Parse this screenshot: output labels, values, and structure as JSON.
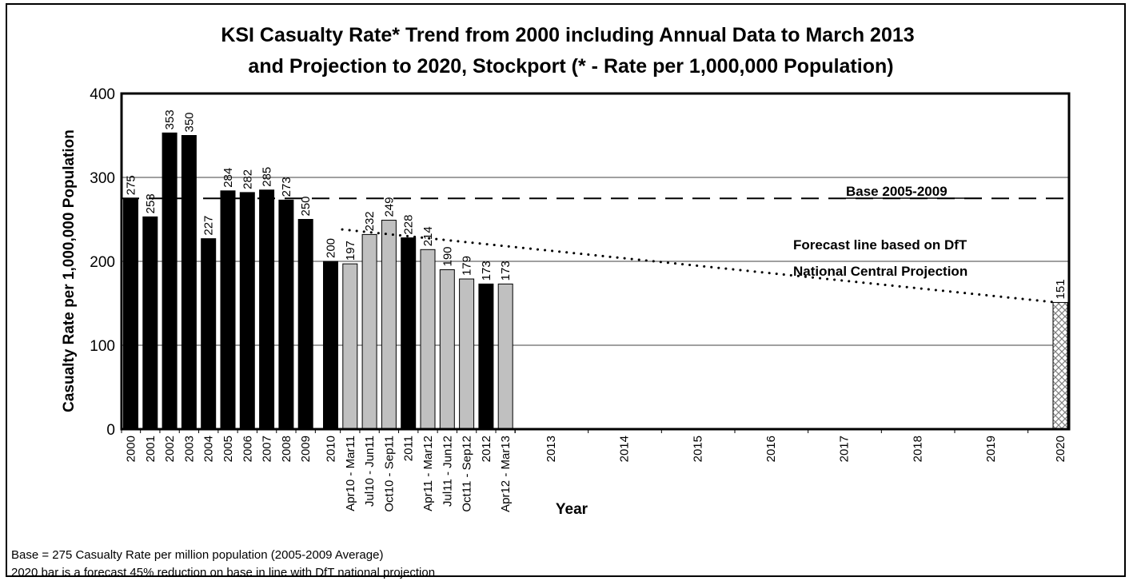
{
  "chart_data": {
    "type": "bar",
    "title_lines": [
      "KSI Casualty Rate* Trend from 2000 including Annual Data to March 2013",
      "and Projection to 2020, Stockport (* - Rate per 1,000,000 Population)"
    ],
    "xlabel": "Year",
    "ylabel": "Casualty Rate per 1,000,000 Population",
    "ylim": [
      0,
      400
    ],
    "yticks": [
      "0",
      "100",
      "200",
      "300",
      "400"
    ],
    "grid": "horizontal",
    "colors": {
      "annual": "#000000",
      "rolling": "#c0c0c0",
      "forecast_hatch": "#808080"
    },
    "bars": [
      {
        "label": "2000",
        "value": 275,
        "kind": "annual"
      },
      {
        "label": "2001",
        "value": 253,
        "kind": "annual"
      },
      {
        "label": "2002",
        "value": 353,
        "kind": "annual"
      },
      {
        "label": "2003",
        "value": 350,
        "kind": "annual"
      },
      {
        "label": "2004",
        "value": 227,
        "kind": "annual"
      },
      {
        "label": "2005",
        "value": 284,
        "kind": "annual"
      },
      {
        "label": "2006",
        "value": 282,
        "kind": "annual"
      },
      {
        "label": "2007",
        "value": 285,
        "kind": "annual"
      },
      {
        "label": "2008",
        "value": 273,
        "kind": "annual"
      },
      {
        "label": "2009",
        "value": 250,
        "kind": "annual"
      },
      {
        "label": "2010",
        "value": 200,
        "kind": "annual"
      },
      {
        "label": "Apr10 - Mar11",
        "value": 197,
        "kind": "rolling"
      },
      {
        "label": "Jul10 - Jun11",
        "value": 232,
        "kind": "rolling"
      },
      {
        "label": "Oct10 - Sep11",
        "value": 249,
        "kind": "rolling"
      },
      {
        "label": "2011",
        "value": 228,
        "kind": "annual"
      },
      {
        "label": "Apr11 - Mar12",
        "value": 214,
        "kind": "rolling"
      },
      {
        "label": "Jul11 - Jun12",
        "value": 190,
        "kind": "rolling"
      },
      {
        "label": "Oct11 - Sep12",
        "value": 179,
        "kind": "rolling"
      },
      {
        "label": "2012",
        "value": 173,
        "kind": "annual"
      },
      {
        "label": "Apr12 - Mar13",
        "value": 173,
        "kind": "rolling"
      },
      {
        "label": "2020",
        "value": 151,
        "kind": "forecast"
      }
    ],
    "empty_year_ticks": [
      "2013",
      "2014",
      "2015",
      "2016",
      "2017",
      "2018",
      "2019"
    ],
    "base_line": {
      "label": "Base 2005-2009",
      "value": 275
    },
    "forecast_line": {
      "label_lines": [
        "Forecast line based on DfT",
        "National Central Projection"
      ],
      "from_value": 238,
      "to_value": 151
    },
    "footnotes": [
      "Base = 275 Casualty Rate per million population (2005-2009 Average)",
      "2020 bar is a forecast 45% reduction on base in line with DfT national  projection"
    ]
  }
}
